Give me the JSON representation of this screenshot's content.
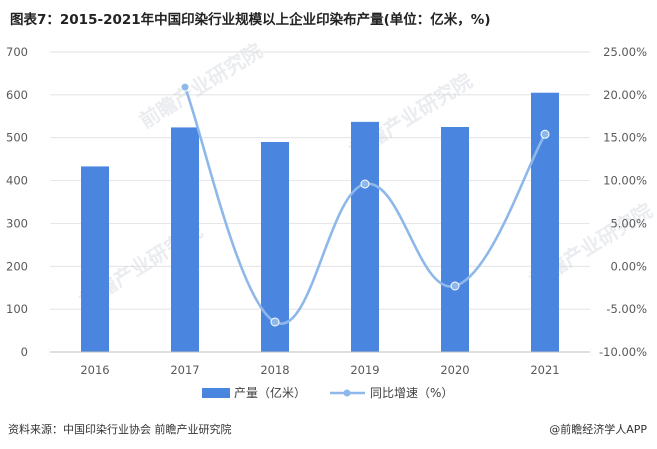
{
  "title": "图表7：2015-2021年中国印染行业规模以上企业印染布产量(单位：亿米，%)",
  "source": "资料来源：中国印染行业协会 前瞻产业研究院",
  "brand": "@前瞻经济学人APP",
  "watermark": "前瞻产业研究院",
  "colors": {
    "bar": "#4a86e0",
    "line": "#8fb8ea",
    "grid": "#d9d9d9",
    "axis": "#bfbfbf"
  },
  "chart_data": {
    "type": "bar",
    "categories": [
      "2016",
      "2017",
      "2018",
      "2019",
      "2020",
      "2021"
    ],
    "series": [
      {
        "name": "产量（亿米）",
        "type": "bar",
        "axis": "left",
        "values": [
          433,
          524,
          490,
          537,
          525,
          605
        ]
      },
      {
        "name": "同比增速（%）",
        "type": "line",
        "axis": "right",
        "values": [
          null,
          20.9,
          -6.5,
          9.6,
          -2.3,
          15.4
        ]
      }
    ],
    "ylim_left": [
      0,
      700
    ],
    "yticks_left": [
      "0",
      "100",
      "200",
      "300",
      "400",
      "500",
      "600",
      "700"
    ],
    "ylim_right": [
      -10,
      25
    ],
    "yticks_right": [
      "-10.00%",
      "-5.00%",
      "0.00%",
      "5.00%",
      "10.00%",
      "15.00%",
      "20.00%",
      "25.00%"
    ],
    "grid": true,
    "legend_position": "bottom"
  }
}
